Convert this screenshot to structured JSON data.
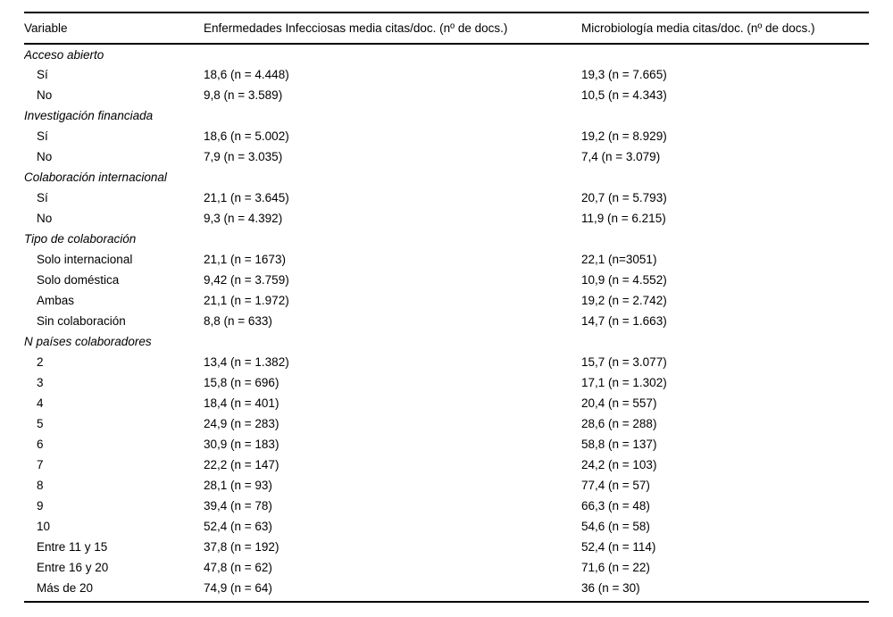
{
  "table": {
    "columns": [
      "Variable",
      "Enfermedades Infecciosas media citas/doc. (nº de docs.)",
      "Microbiología media citas/doc. (nº de docs.)"
    ],
    "sections": [
      {
        "label": "Acceso abierto",
        "rows": [
          {
            "label": "Sí",
            "enfermedades": "18,6 (n = 4.448)",
            "microbiologia": "19,3 (n = 7.665)"
          },
          {
            "label": "No",
            "enfermedades": "9,8 (n = 3.589)",
            "microbiologia": "10,5 (n = 4.343)"
          }
        ]
      },
      {
        "label": "Investigación financiada",
        "rows": [
          {
            "label": "Sí",
            "enfermedades": "18,6 (n = 5.002)",
            "microbiologia": "19,2 (n = 8.929)"
          },
          {
            "label": "No",
            "enfermedades": "7,9 (n = 3.035)",
            "microbiologia": "7,4 (n = 3.079)"
          }
        ]
      },
      {
        "label": "Colaboración internacional",
        "rows": [
          {
            "label": "Sí",
            "enfermedades": "21,1 (n = 3.645)",
            "microbiologia": "20,7 (n = 5.793)"
          },
          {
            "label": "No",
            "enfermedades": "9,3 (n = 4.392)",
            "microbiologia": "11,9 (n = 6.215)"
          }
        ]
      },
      {
        "label": "Tipo de colaboración",
        "rows": [
          {
            "label": "Solo internacional",
            "enfermedades": "21,1 (n = 1673)",
            "microbiologia": "22,1 (n=3051)"
          },
          {
            "label": "Solo doméstica",
            "enfermedades": "9,42 (n = 3.759)",
            "microbiologia": "10,9 (n = 4.552)"
          },
          {
            "label": "Ambas",
            "enfermedades": "21,1 (n = 1.972)",
            "microbiologia": "19,2 (n = 2.742)"
          },
          {
            "label": "Sin colaboración",
            "enfermedades": "8,8 (n = 633)",
            "microbiologia": "14,7 (n = 1.663)"
          }
        ]
      },
      {
        "label": "N países colaboradores",
        "rows": [
          {
            "label": "2",
            "enfermedades": "13,4 (n = 1.382)",
            "microbiologia": "15,7 (n = 3.077)"
          },
          {
            "label": "3",
            "enfermedades": "15,8 (n = 696)",
            "microbiologia": "17,1 (n = 1.302)"
          },
          {
            "label": "4",
            "enfermedades": "18,4 (n = 401)",
            "microbiologia": "20,4 (n = 557)"
          },
          {
            "label": "5",
            "enfermedades": "24,9 (n = 283)",
            "microbiologia": "28,6 (n = 288)"
          },
          {
            "label": "6",
            "enfermedades": "30,9 (n = 183)",
            "microbiologia": "58,8 (n = 137)"
          },
          {
            "label": "7",
            "enfermedades": "22,2 (n = 147)",
            "microbiologia": "24,2 (n = 103)"
          },
          {
            "label": "8",
            "enfermedades": "28,1 (n = 93)",
            "microbiologia": "77,4 (n = 57)"
          },
          {
            "label": "9",
            "enfermedades": "39,4 (n = 78)",
            "microbiologia": "66,3 (n = 48)"
          },
          {
            "label": "10",
            "enfermedades": "52,4 (n = 63)",
            "microbiologia": "54,6 (n = 58)"
          },
          {
            "label": "Entre 11 y 15",
            "enfermedades": "37,8 (n = 192)",
            "microbiologia": "52,4 (n = 114)"
          },
          {
            "label": "Entre 16 y 20",
            "enfermedades": "47,8 (n = 62)",
            "microbiologia": "71,6 (n = 22)"
          },
          {
            "label": "Más de 20",
            "enfermedades": "74,9 (n = 64)",
            "microbiologia": "36 (n = 30)"
          }
        ]
      }
    ]
  },
  "colors": {
    "text": "#000000",
    "background": "#ffffff",
    "rule": "#000000"
  }
}
